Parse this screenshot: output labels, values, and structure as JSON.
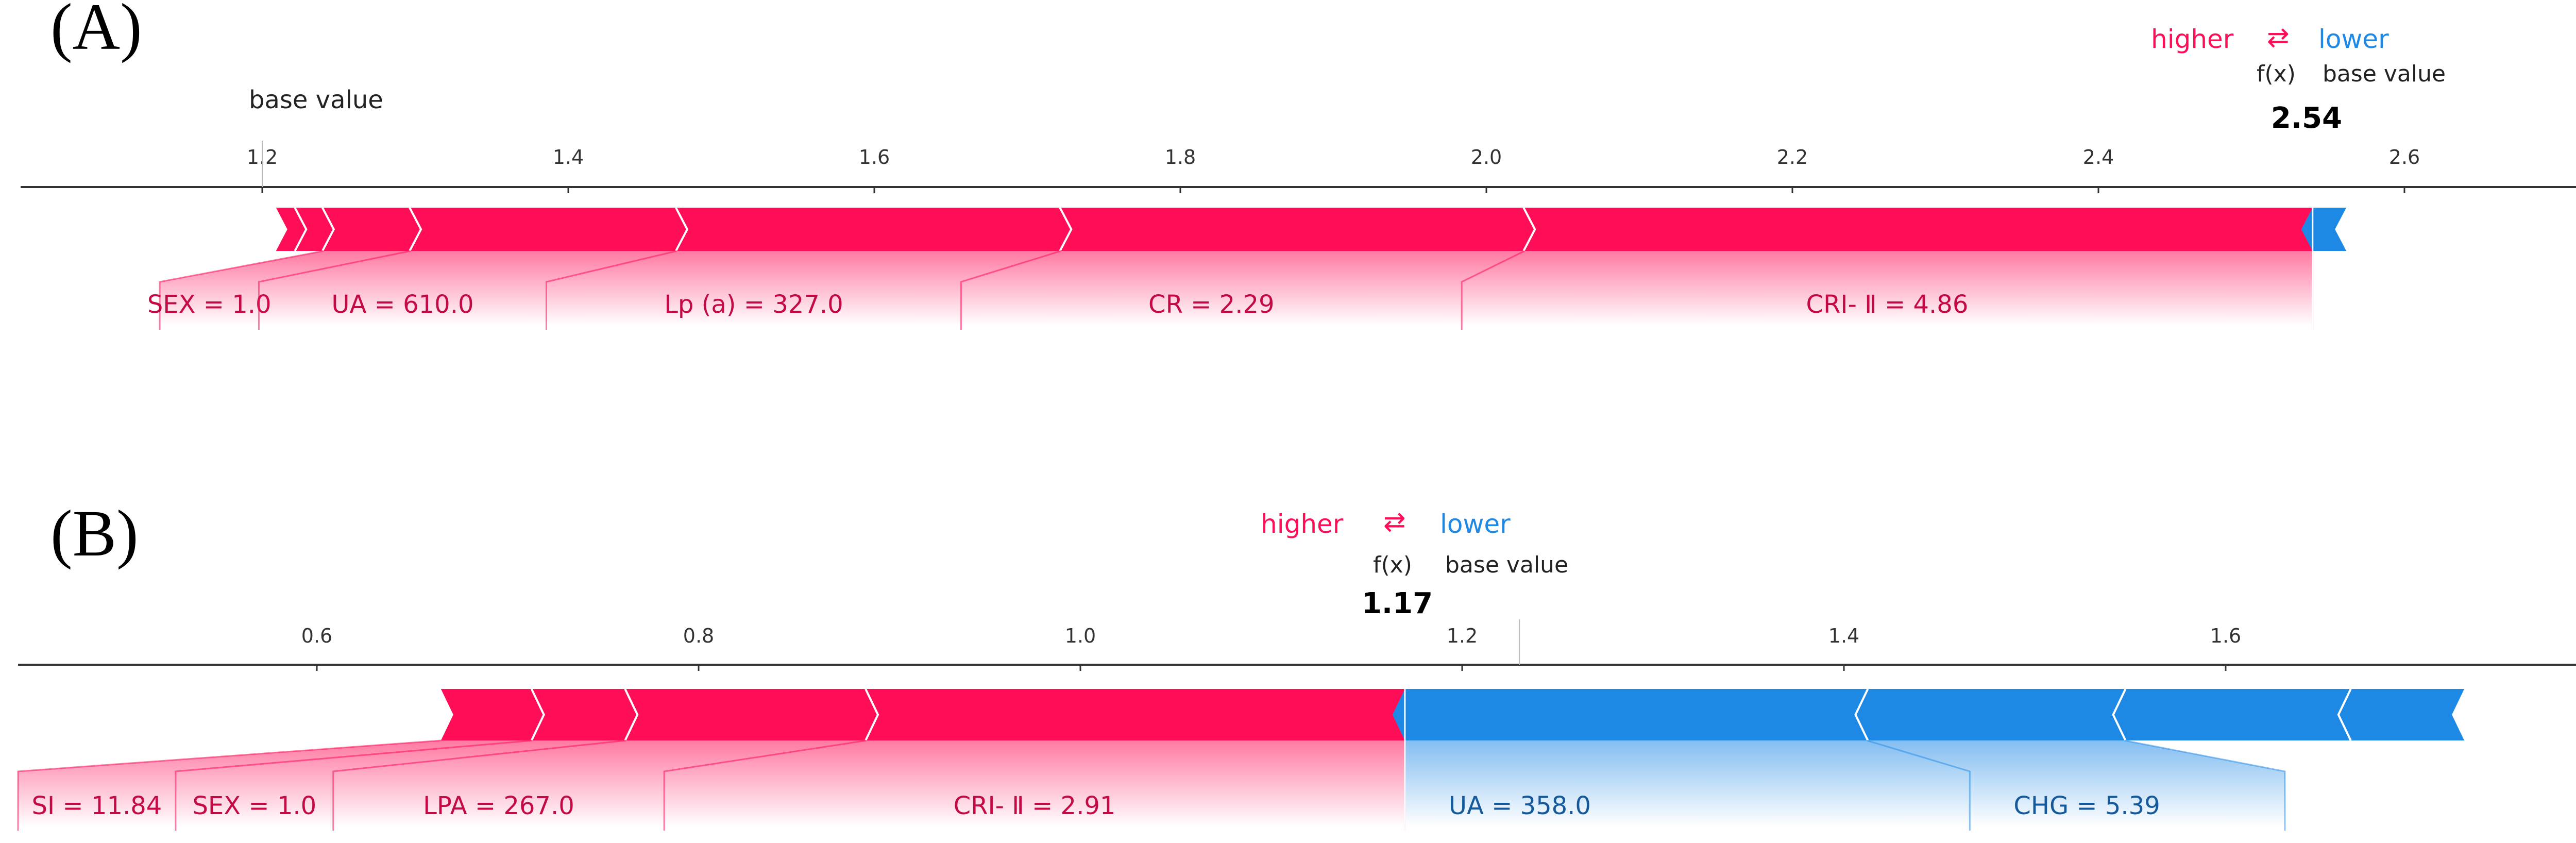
{
  "colors": {
    "positive": "#ff0d57",
    "negative": "#1e88e5",
    "pos_text": "#c30a44",
    "neg_text": "#14599b"
  },
  "legend": {
    "higher": "higher",
    "arrows": "⇄",
    "lower": "lower",
    "fx": "f(x)",
    "base": "base value"
  },
  "chart_data": [
    {
      "type": "force",
      "panel_label": "(A)",
      "output_value": 2.54,
      "output_label": "2.54",
      "base_value": 1.2,
      "base_label_text": "base value",
      "xlim": [
        1.05,
        2.72
      ],
      "ticks": [
        1.2,
        1.4,
        1.6,
        1.8,
        2.0,
        2.2,
        2.4,
        2.6
      ],
      "tick_labels": [
        "1.2",
        "1.4",
        "1.6",
        "1.8",
        "2.0",
        "2.2",
        "2.4",
        "2.6"
      ],
      "positive": [
        {
          "start": 1.209,
          "end": 1.222,
          "label": ""
        },
        {
          "start": 1.222,
          "end": 1.24,
          "label": ""
        },
        {
          "start": 1.24,
          "end": 1.297,
          "label": "SEX = 1.0"
        },
        {
          "start": 1.297,
          "end": 1.471,
          "label": "UA = 610.0"
        },
        {
          "start": 1.471,
          "end": 1.722,
          "label": "Lp (a) = 327.0"
        },
        {
          "start": 1.722,
          "end": 2.025,
          "label": "CR = 2.29"
        },
        {
          "start": 2.025,
          "end": 2.54,
          "label": "CRI- Ⅱ = 4.86"
        }
      ],
      "negative": [
        {
          "start": 2.54,
          "end": 2.562,
          "label": ""
        }
      ]
    },
    {
      "type": "force",
      "panel_label": "(B)",
      "output_value": 1.17,
      "output_label": "1.17",
      "base_value": 1.23,
      "xlim": [
        0.45,
        1.8
      ],
      "ticks": [
        0.6,
        0.8,
        1.0,
        1.2,
        1.4,
        1.6
      ],
      "tick_labels": [
        "0.6",
        "0.8",
        "1.0",
        "1.2",
        "1.4",
        "1.6"
      ],
      "positive": [
        {
          "start": 0.665,
          "end": 0.713,
          "label": "SI = 11.84"
        },
        {
          "start": 0.713,
          "end": 0.762,
          "label": "SEX = 1.0"
        },
        {
          "start": 0.762,
          "end": 0.888,
          "label": "LPA = 267.0"
        },
        {
          "start": 0.888,
          "end": 1.17,
          "label": "CRI- Ⅱ = 2.91"
        }
      ],
      "negative": [
        {
          "start": 1.17,
          "end": 1.412,
          "label": "UA = 358.0"
        },
        {
          "start": 1.412,
          "end": 1.547,
          "label": "CHG = 5.39"
        },
        {
          "start": 1.547,
          "end": 1.665,
          "label": ""
        },
        {
          "start": 1.665,
          "end": 1.725,
          "label": ""
        }
      ]
    }
  ]
}
